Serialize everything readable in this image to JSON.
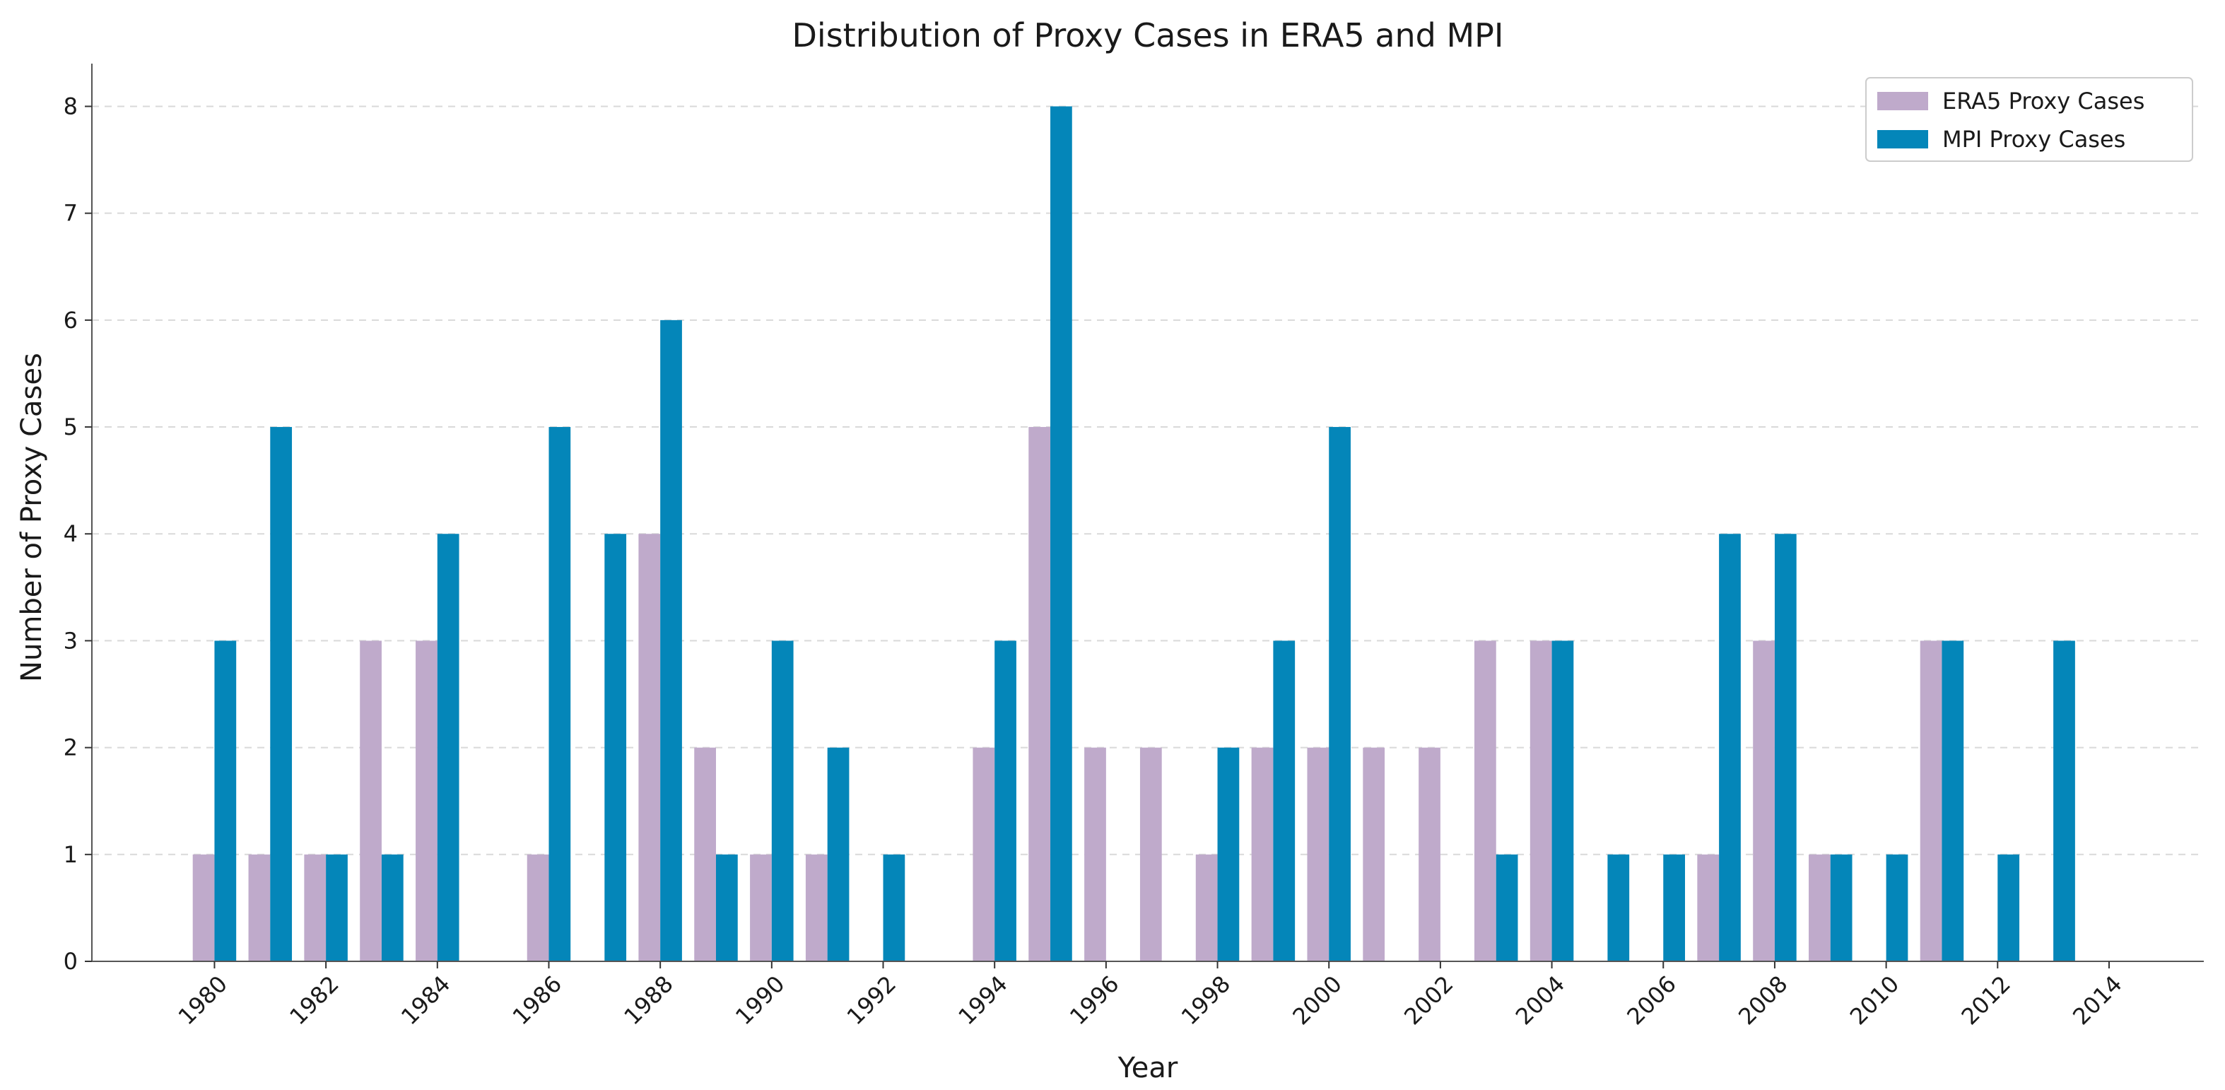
{
  "chart_data": {
    "type": "bar",
    "title": "Distribution of Proxy Cases in ERA5 and MPI",
    "xlabel": "Year",
    "ylabel": "Number of Proxy Cases",
    "x": [
      1980,
      1981,
      1982,
      1983,
      1984,
      1985,
      1986,
      1987,
      1988,
      1989,
      1990,
      1991,
      1992,
      1993,
      1994,
      1995,
      1996,
      1997,
      1998,
      1999,
      2000,
      2001,
      2002,
      2003,
      2004,
      2005,
      2006,
      2007,
      2008,
      2009,
      2010,
      2011,
      2012,
      2013,
      2014
    ],
    "xticks": [
      1980,
      1982,
      1984,
      1986,
      1988,
      1990,
      1992,
      1994,
      1996,
      1998,
      2000,
      2002,
      2004,
      2006,
      2008,
      2010,
      2012,
      2014
    ],
    "xlim": [
      1977.8,
      2015.7
    ],
    "ylim": [
      0,
      8.4
    ],
    "yticks": [
      0,
      1,
      2,
      3,
      4,
      5,
      6,
      7,
      8
    ],
    "grid": "y-dashed",
    "legend_position": "top-right",
    "series": [
      {
        "name": "ERA5 Proxy Cases",
        "color": "#bfaacb",
        "offset": "left",
        "values": [
          1,
          1,
          1,
          3,
          3,
          0,
          1,
          0,
          4,
          2,
          1,
          1,
          0,
          0,
          2,
          5,
          2,
          2,
          1,
          2,
          2,
          2,
          2,
          3,
          3,
          0,
          0,
          1,
          3,
          1,
          0,
          3,
          0,
          0,
          0
        ]
      },
      {
        "name": "MPI Proxy Cases",
        "color": "#0486b9",
        "offset": "right",
        "values": [
          3,
          5,
          1,
          1,
          4,
          0,
          5,
          4,
          6,
          1,
          3,
          2,
          1,
          0,
          3,
          8,
          0,
          0,
          2,
          3,
          5,
          0,
          0,
          1,
          3,
          1,
          1,
          4,
          4,
          1,
          1,
          3,
          1,
          3,
          0
        ]
      }
    ]
  }
}
